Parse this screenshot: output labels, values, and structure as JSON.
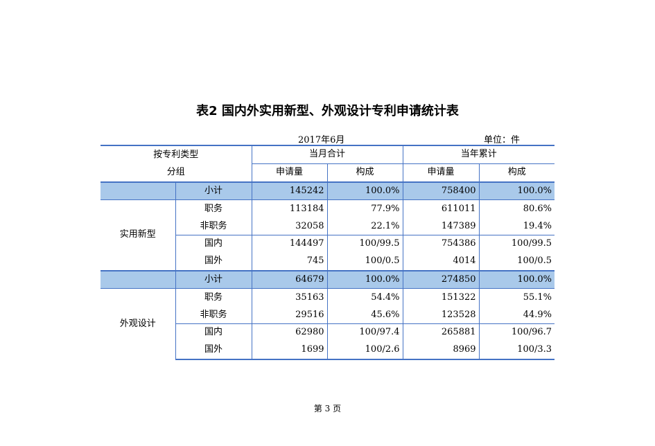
{
  "title": "表2  国内外实用新型、外观设计专利申请统计表",
  "month": "2017年6月",
  "unit": "单位：件",
  "header": {
    "col_group_line1": "按专利类型",
    "col_group_line2": "分组",
    "current_month": "当月合计",
    "year_to_date": "当年累计",
    "applications": "申请量",
    "composition": "构成"
  },
  "sections": [
    {
      "name": "实用新型",
      "rows": [
        {
          "label": "小计",
          "m_app": "145242",
          "m_comp": "100.0%",
          "y_app": "758400",
          "y_comp": "100.0%"
        },
        {
          "label": "职务",
          "m_app": "113184",
          "m_comp": "77.9%",
          "y_app": "611011",
          "y_comp": "80.6%"
        },
        {
          "label": "非职务",
          "m_app": "32058",
          "m_comp": "22.1%",
          "y_app": "147389",
          "y_comp": "19.4%"
        },
        {
          "label": "国内",
          "m_app": "144497",
          "m_comp": "100/99.5",
          "y_app": "754386",
          "y_comp": "100/99.5"
        },
        {
          "label": "国外",
          "m_app": "745",
          "m_comp": "100/0.5",
          "y_app": "4014",
          "y_comp": "100/0.5"
        }
      ]
    },
    {
      "name": "外观设计",
      "rows": [
        {
          "label": "小计",
          "m_app": "64679",
          "m_comp": "100.0%",
          "y_app": "274850",
          "y_comp": "100.0%"
        },
        {
          "label": "职务",
          "m_app": "35163",
          "m_comp": "54.4%",
          "y_app": "151322",
          "y_comp": "55.1%"
        },
        {
          "label": "非职务",
          "m_app": "29516",
          "m_comp": "45.6%",
          "y_app": "123528",
          "y_comp": "44.9%"
        },
        {
          "label": "国内",
          "m_app": "62980",
          "m_comp": "100/97.4",
          "y_app": "265881",
          "y_comp": "100/96.7"
        },
        {
          "label": "国外",
          "m_app": "1699",
          "m_comp": "100/2.6",
          "y_app": "8969",
          "y_comp": "100/3.3"
        }
      ]
    }
  ],
  "footer": "第 3 页",
  "colors": {
    "rule": "#4472c4",
    "highlight": "#a9c9ea"
  }
}
